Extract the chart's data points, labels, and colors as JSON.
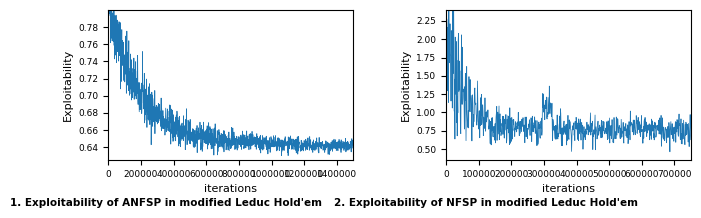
{
  "plot1": {
    "title": "1. Exploitability of ANFSP in modified Leduc Hold'em",
    "xlabel": "iterations",
    "ylabel": "Exploitability",
    "xlim": [
      0,
      1500000
    ],
    "ylim": [
      0.625,
      0.8
    ],
    "yticks": [
      0.64,
      0.66,
      0.68,
      0.7,
      0.72,
      0.74,
      0.76,
      0.78
    ],
    "xticks": [
      0,
      200000,
      400000,
      600000,
      800000,
      1000000,
      1200000,
      1400000
    ],
    "xtick_labels": [
      "0",
      "200000",
      "400000",
      "600000",
      "800000",
      "1000000",
      "1200000",
      "1400000"
    ],
    "line_color": "#1f77b4",
    "seed": 42,
    "n_points": 1500
  },
  "plot2": {
    "title": "2. Exploitability of NFSP in modified Leduc Hold'em",
    "xlabel": "iterations",
    "ylabel": "Exploitability",
    "xlim": [
      0,
      750000
    ],
    "ylim": [
      0.35,
      2.4
    ],
    "yticks": [
      0.5,
      0.75,
      1.0,
      1.25,
      1.5,
      1.75,
      2.0,
      2.25
    ],
    "xticks": [
      0,
      100000,
      200000,
      300000,
      400000,
      500000,
      600000,
      700000
    ],
    "xtick_labels": [
      "0",
      "100000",
      "200000",
      "300000",
      "400000",
      "500000",
      "600000",
      "700000"
    ],
    "line_color": "#1f77b4",
    "seed": 7,
    "n_points": 750
  },
  "figure_bg": "#ffffff",
  "title_fontsize": 7.5,
  "label_fontsize": 8,
  "tick_fontsize": 6.5,
  "title_fontweight": "bold"
}
